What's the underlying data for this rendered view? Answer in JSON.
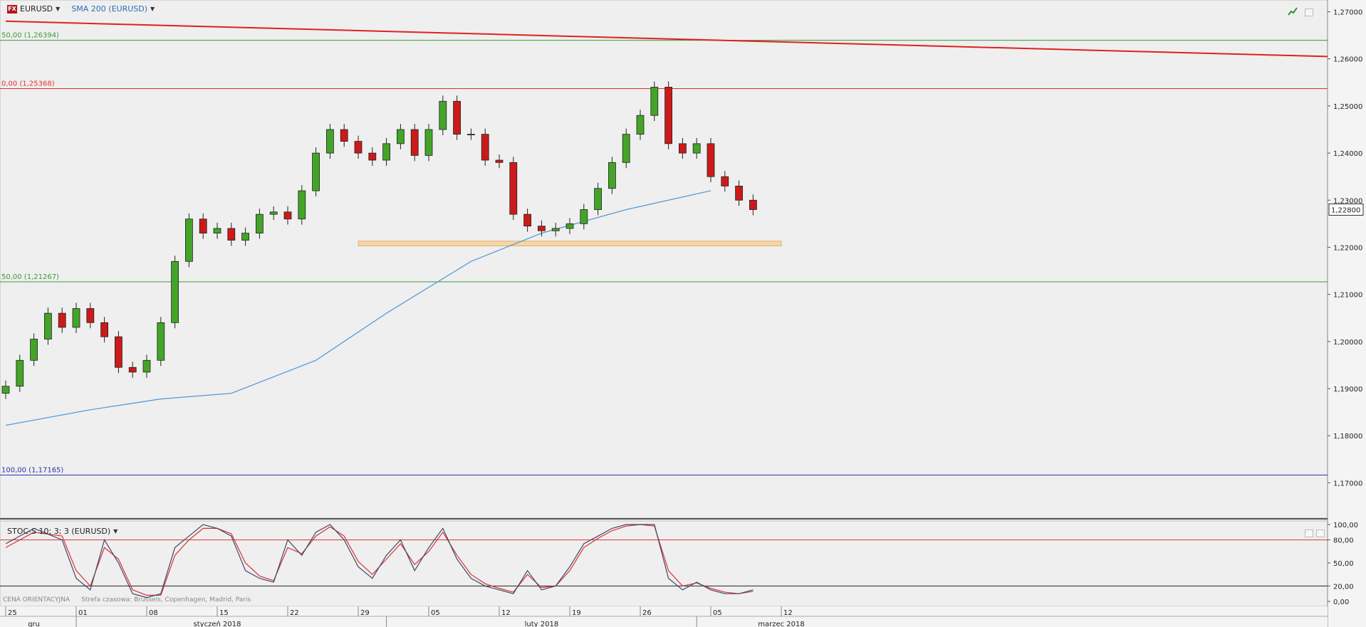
{
  "toolbar": {
    "fx_badge": "FX",
    "symbol": "EURUSD",
    "indicator": "SMA 200 (EURUSD)",
    "stoch_label": "STOC-S 10; 3; 3 (EURUSD)"
  },
  "footer": {
    "price_type": "CENA ORIENTACYJNA",
    "timezone": "Strefa czasowa: Brussels, Copenhagen, Madrid, Paris"
  },
  "colors": {
    "candle_up": "#43a428",
    "candle_down": "#cc1a1a",
    "sma": "#5a9bd5",
    "trendline": "#e02020",
    "fib_green": "#3a9a3a",
    "fib_red": "#e03030",
    "fib_blue": "#3030b0",
    "zone": "#f5d7a8",
    "stoch_k": "#3a4a6a",
    "stoch_d": "#e03030"
  },
  "chart_data": [
    {
      "type": "candlestick",
      "symbol": "EURUSD",
      "x_unit": "trading days",
      "x_start": "2017-12-25",
      "y_range": [
        1.1625,
        1.2725
      ],
      "y_ticks": [
        "1,27000",
        "1,26000",
        "1,25000",
        "1,24000",
        "1,23000",
        "1,22000",
        "1,21000",
        "1,20000",
        "1,19000",
        "1,18000",
        "1,17000"
      ],
      "y_tick_values": [
        1.27,
        1.26,
        1.25,
        1.24,
        1.23,
        1.22,
        1.21,
        1.2,
        1.19,
        1.18,
        1.17
      ],
      "current_price": "1,22800",
      "current_price_value": 1.228,
      "fib_levels": [
        {
          "label": "50,00 (1,26394)",
          "value": 1.26394,
          "color": "#3a9a3a"
        },
        {
          "label": "0,00 (1,25368)",
          "value": 1.25368,
          "color": "#e03030"
        },
        {
          "label": "50,00 (1,21267)",
          "value": 1.21267,
          "color": "#3a9a3a"
        },
        {
          "label": "100,00 (1,17165)",
          "value": 1.17165,
          "color": "#3030b0"
        }
      ],
      "trendline": {
        "from": {
          "day": 0,
          "price": 1.268
        },
        "to": {
          "day": 85,
          "price": 1.2605
        }
      },
      "support_zone": {
        "from_day": 25,
        "to_day": 55,
        "low": 1.2203,
        "high": 1.2213
      },
      "sma200_series": [
        {
          "day": 0,
          "value": 1.1822
        },
        {
          "day": 6,
          "value": 1.1855
        },
        {
          "day": 11,
          "value": 1.1878
        },
        {
          "day": 16,
          "value": 1.189
        },
        {
          "day": 22,
          "value": 1.196
        },
        {
          "day": 27,
          "value": 1.206
        },
        {
          "day": 33,
          "value": 1.217
        },
        {
          "day": 38,
          "value": 1.223
        },
        {
          "day": 44,
          "value": 1.228
        },
        {
          "day": 50,
          "value": 1.232
        }
      ],
      "close_series": [
        {
          "day": 0,
          "value": 1.1905
        },
        {
          "day": 1,
          "value": 1.196
        },
        {
          "day": 2,
          "value": 1.2005
        },
        {
          "day": 3,
          "value": 1.206
        },
        {
          "day": 4,
          "value": 1.203
        },
        {
          "day": 5,
          "value": 1.207
        },
        {
          "day": 6,
          "value": 1.204
        },
        {
          "day": 7,
          "value": 1.201
        },
        {
          "day": 8,
          "value": 1.1945
        },
        {
          "day": 9,
          "value": 1.1935
        },
        {
          "day": 10,
          "value": 1.196
        },
        {
          "day": 11,
          "value": 1.204
        },
        {
          "day": 12,
          "value": 1.217
        },
        {
          "day": 13,
          "value": 1.226
        },
        {
          "day": 14,
          "value": 1.223
        },
        {
          "day": 15,
          "value": 1.224
        },
        {
          "day": 16,
          "value": 1.2215
        },
        {
          "day": 17,
          "value": 1.223
        },
        {
          "day": 18,
          "value": 1.227
        },
        {
          "day": 19,
          "value": 1.2275
        },
        {
          "day": 20,
          "value": 1.226
        },
        {
          "day": 21,
          "value": 1.232
        },
        {
          "day": 22,
          "value": 1.24
        },
        {
          "day": 23,
          "value": 1.245
        },
        {
          "day": 24,
          "value": 1.2425
        },
        {
          "day": 25,
          "value": 1.24
        },
        {
          "day": 26,
          "value": 1.2385
        },
        {
          "day": 27,
          "value": 1.242
        },
        {
          "day": 28,
          "value": 1.245
        },
        {
          "day": 29,
          "value": 1.2395
        },
        {
          "day": 30,
          "value": 1.245
        },
        {
          "day": 31,
          "value": 1.251
        },
        {
          "day": 32,
          "value": 1.244
        },
        {
          "day": 33,
          "value": 1.244
        },
        {
          "day": 34,
          "value": 1.2385
        },
        {
          "day": 35,
          "value": 1.238
        },
        {
          "day": 36,
          "value": 1.227
        },
        {
          "day": 37,
          "value": 1.2245
        },
        {
          "day": 38,
          "value": 1.2235
        },
        {
          "day": 39,
          "value": 1.224
        },
        {
          "day": 40,
          "value": 1.225
        },
        {
          "day": 41,
          "value": 1.228
        },
        {
          "day": 42,
          "value": 1.2325
        },
        {
          "day": 43,
          "value": 1.238
        },
        {
          "day": 44,
          "value": 1.244
        },
        {
          "day": 45,
          "value": 1.248
        },
        {
          "day": 46,
          "value": 1.254
        },
        {
          "day": 47,
          "value": 1.242
        },
        {
          "day": 48,
          "value": 1.24
        },
        {
          "day": 49,
          "value": 1.242
        },
        {
          "day": 50,
          "value": 1.235
        },
        {
          "day": 51,
          "value": 1.233
        },
        {
          "day": 52,
          "value": 1.23
        },
        {
          "day": 53,
          "value": 1.228
        }
      ]
    },
    {
      "type": "line",
      "name": "STOC-S 10; 3; 3 (EURUSD)",
      "y_range": [
        0,
        100
      ],
      "y_ticks": [
        "100,00",
        "80,00",
        "50,00",
        "20,00",
        "0,00"
      ],
      "y_tick_values": [
        100,
        80,
        50,
        20,
        0
      ],
      "levels": [
        80,
        20
      ],
      "k_series": [
        {
          "day": 0,
          "value": 75
        },
        {
          "day": 2,
          "value": 95
        },
        {
          "day": 4,
          "value": 80
        },
        {
          "day": 5,
          "value": 30
        },
        {
          "day": 6,
          "value": 15
        },
        {
          "day": 7,
          "value": 80
        },
        {
          "day": 8,
          "value": 50
        },
        {
          "day": 9,
          "value": 10
        },
        {
          "day": 10,
          "value": 5
        },
        {
          "day": 11,
          "value": 10
        },
        {
          "day": 12,
          "value": 70
        },
        {
          "day": 13,
          "value": 85
        },
        {
          "day": 14,
          "value": 100
        },
        {
          "day": 15,
          "value": 95
        },
        {
          "day": 16,
          "value": 85
        },
        {
          "day": 17,
          "value": 40
        },
        {
          "day": 18,
          "value": 30
        },
        {
          "day": 19,
          "value": 25
        },
        {
          "day": 20,
          "value": 80
        },
        {
          "day": 21,
          "value": 60
        },
        {
          "day": 22,
          "value": 90
        },
        {
          "day": 23,
          "value": 100
        },
        {
          "day": 24,
          "value": 80
        },
        {
          "day": 25,
          "value": 45
        },
        {
          "day": 26,
          "value": 30
        },
        {
          "day": 27,
          "value": 60
        },
        {
          "day": 28,
          "value": 80
        },
        {
          "day": 29,
          "value": 40
        },
        {
          "day": 30,
          "value": 70
        },
        {
          "day": 31,
          "value": 95
        },
        {
          "day": 32,
          "value": 55
        },
        {
          "day": 33,
          "value": 30
        },
        {
          "day": 34,
          "value": 20
        },
        {
          "day": 35,
          "value": 15
        },
        {
          "day": 36,
          "value": 10
        },
        {
          "day": 37,
          "value": 40
        },
        {
          "day": 38,
          "value": 15
        },
        {
          "day": 39,
          "value": 20
        },
        {
          "day": 40,
          "value": 45
        },
        {
          "day": 41,
          "value": 75
        },
        {
          "day": 42,
          "value": 85
        },
        {
          "day": 43,
          "value": 95
        },
        {
          "day": 44,
          "value": 100
        },
        {
          "day": 45,
          "value": 100
        },
        {
          "day": 46,
          "value": 100
        },
        {
          "day": 47,
          "value": 30
        },
        {
          "day": 48,
          "value": 15
        },
        {
          "day": 49,
          "value": 25
        },
        {
          "day": 50,
          "value": 15
        },
        {
          "day": 51,
          "value": 10
        },
        {
          "day": 52,
          "value": 10
        },
        {
          "day": 53,
          "value": 15
        }
      ],
      "d_series": [
        {
          "day": 0,
          "value": 70
        },
        {
          "day": 2,
          "value": 90
        },
        {
          "day": 4,
          "value": 85
        },
        {
          "day": 5,
          "value": 40
        },
        {
          "day": 6,
          "value": 20
        },
        {
          "day": 7,
          "value": 70
        },
        {
          "day": 8,
          "value": 55
        },
        {
          "day": 9,
          "value": 15
        },
        {
          "day": 10,
          "value": 8
        },
        {
          "day": 11,
          "value": 8
        },
        {
          "day": 12,
          "value": 60
        },
        {
          "day": 13,
          "value": 80
        },
        {
          "day": 14,
          "value": 95
        },
        {
          "day": 15,
          "value": 95
        },
        {
          "day": 16,
          "value": 88
        },
        {
          "day": 17,
          "value": 50
        },
        {
          "day": 18,
          "value": 33
        },
        {
          "day": 19,
          "value": 27
        },
        {
          "day": 20,
          "value": 70
        },
        {
          "day": 21,
          "value": 62
        },
        {
          "day": 22,
          "value": 85
        },
        {
          "day": 23,
          "value": 97
        },
        {
          "day": 24,
          "value": 85
        },
        {
          "day": 25,
          "value": 52
        },
        {
          "day": 26,
          "value": 35
        },
        {
          "day": 27,
          "value": 55
        },
        {
          "day": 28,
          "value": 75
        },
        {
          "day": 29,
          "value": 48
        },
        {
          "day": 30,
          "value": 65
        },
        {
          "day": 31,
          "value": 90
        },
        {
          "day": 32,
          "value": 60
        },
        {
          "day": 33,
          "value": 35
        },
        {
          "day": 34,
          "value": 23
        },
        {
          "day": 35,
          "value": 17
        },
        {
          "day": 36,
          "value": 12
        },
        {
          "day": 37,
          "value": 35
        },
        {
          "day": 38,
          "value": 18
        },
        {
          "day": 39,
          "value": 20
        },
        {
          "day": 40,
          "value": 40
        },
        {
          "day": 41,
          "value": 70
        },
        {
          "day": 42,
          "value": 82
        },
        {
          "day": 43,
          "value": 92
        },
        {
          "day": 44,
          "value": 98
        },
        {
          "day": 45,
          "value": 100
        },
        {
          "day": 46,
          "value": 98
        },
        {
          "day": 47,
          "value": 40
        },
        {
          "day": 48,
          "value": 20
        },
        {
          "day": 49,
          "value": 24
        },
        {
          "day": 50,
          "value": 17
        },
        {
          "day": 51,
          "value": 12
        },
        {
          "day": 52,
          "value": 10
        },
        {
          "day": 53,
          "value": 13
        }
      ]
    }
  ],
  "x_axis": {
    "day_ticks": [
      {
        "label": "25",
        "day": 0
      },
      {
        "label": "01",
        "day": 5
      },
      {
        "label": "08",
        "day": 10
      },
      {
        "label": "15",
        "day": 15
      },
      {
        "label": "22",
        "day": 20
      },
      {
        "label": "29",
        "day": 25
      },
      {
        "label": "05",
        "day": 30
      },
      {
        "label": "12",
        "day": 35
      },
      {
        "label": "19",
        "day": 40
      },
      {
        "label": "26",
        "day": 45
      },
      {
        "label": "05",
        "day": 50
      },
      {
        "label": "12",
        "day": 55
      }
    ],
    "month_labels": [
      {
        "label": "gru",
        "day": 2
      },
      {
        "label": "styczeń 2018",
        "day": 15
      },
      {
        "label": "luty 2018",
        "day": 38
      },
      {
        "label": "marzec 2018",
        "day": 55
      }
    ],
    "month_separators": [
      5,
      27,
      49
    ]
  }
}
